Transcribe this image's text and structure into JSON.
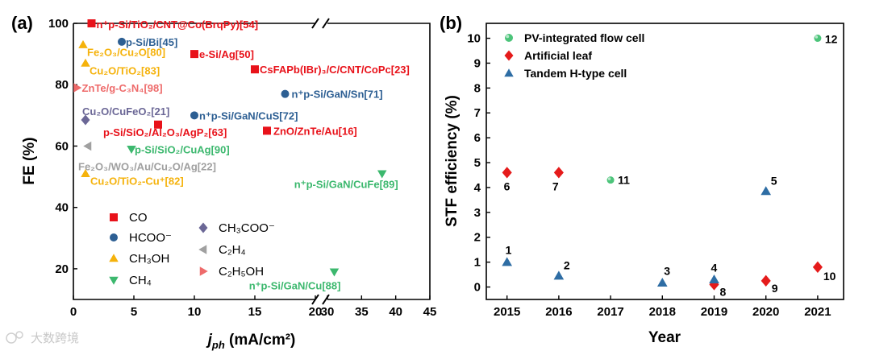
{
  "colors": {
    "CO": "#e8121a",
    "HCOO": "#2d5f93",
    "CH3OH": "#f5b20b",
    "CH4": "#3cb86e",
    "CH3COO": "#6b6796",
    "C2H4": "#a0a0a0",
    "C2H5OH": "#ee6b6b",
    "pv": "#4cc47a",
    "leaf": "#e51b1b",
    "tandem": "#2e6da4"
  },
  "watermark": "大数跨境",
  "chart_data": [
    {
      "panel": "(a)",
      "type": "scatter",
      "xlabel_main": "j",
      "xlabel_sub": "ph",
      "xlabel_rest": " (mA/cm²)",
      "ylabel": "FE (%)",
      "x_segments": [
        [
          0,
          20
        ],
        [
          30,
          45
        ]
      ],
      "x_ticks": [
        "0",
        "5",
        "10",
        "15",
        "20",
        "30",
        "35",
        "40",
        "45"
      ],
      "y_range": [
        10,
        100
      ],
      "y_ticks": [
        "20",
        "40",
        "60",
        "80",
        "100"
      ],
      "legend": [
        {
          "key": "CO",
          "label": "CO"
        },
        {
          "key": "HCOO",
          "label": "HCOO⁻"
        },
        {
          "key": "CH3OH",
          "label": "CH₃OH"
        },
        {
          "key": "CH4",
          "label": "CH₄"
        },
        {
          "key": "CH3COO",
          "label": "CH₃COO⁻"
        },
        {
          "key": "C2H4",
          "label": "C₂H₄"
        },
        {
          "key": "C2H5OH",
          "label": "C₂H₅OH"
        }
      ],
      "points": [
        {
          "type": "CO",
          "x": 1.5,
          "y": 100,
          "label": "n⁺p-Si/TiO₂/CNT@Co(BrqPy)[54]"
        },
        {
          "type": "HCOO",
          "x": 4,
          "y": 94,
          "label": "p-Si/Bi[45]"
        },
        {
          "type": "CH3OH",
          "x": 0.8,
          "y": 93,
          "label": "Fe₂O₃/Cu₂O[80]"
        },
        {
          "type": "CO",
          "x": 10,
          "y": 90,
          "label": "e-Si/Ag[50]"
        },
        {
          "type": "CH3OH",
          "x": 1,
          "y": 87,
          "label": "Cu₂O/TiO₂[83]"
        },
        {
          "type": "CO",
          "x": 15,
          "y": 85,
          "label": "CsFAPb(IBr)₃/C/CNT/CoPc[23]"
        },
        {
          "type": "C2H5OH",
          "x": 0.3,
          "y": 79,
          "label": "ZnTe/g-C₃N₄[98]"
        },
        {
          "type": "HCOO",
          "x": 17.5,
          "y": 77,
          "label": "n⁺p-Si/GaN/Sn[71]"
        },
        {
          "type": "HCOO",
          "x": 10,
          "y": 70,
          "label": "n⁺p-Si/GaN/CuS[72]"
        },
        {
          "type": "CH3COO",
          "x": 1,
          "y": 68.5,
          "label": "Cu₂O/CuFeO₂[21]"
        },
        {
          "type": "CO",
          "x": 7,
          "y": 67,
          "label": "p-Si/SiO₂/Al₂O₃/AgP₂[63]"
        },
        {
          "type": "CO",
          "x": 16,
          "y": 65,
          "label": "ZnO/ZnTe/Au[16]"
        },
        {
          "type": "C2H4",
          "x": 1.2,
          "y": 60,
          "label": "Fe₂O₃/WO₃/Au/Cu₂O/Ag[22]"
        },
        {
          "type": "CH4",
          "x": 4.8,
          "y": 59,
          "label": "p-Si/SiO₂/CuAg[90]"
        },
        {
          "type": "CH3OH",
          "x": 1,
          "y": 51,
          "label": "Cu₂O/TiO₂-Cu⁺[82]"
        },
        {
          "type": "CH4",
          "x": 38,
          "y": 51,
          "label": "n⁺p-Si/GaN/CuFe[89]"
        },
        {
          "type": "CH4",
          "x": 31,
          "y": 19,
          "label": "n⁺p-Si/GaN/Cu[88]"
        }
      ]
    },
    {
      "panel": "(b)",
      "type": "scatter",
      "xlabel": "Year",
      "ylabel": "STF efficiency (%)",
      "x_range": [
        2014.6,
        2021.5
      ],
      "x_ticks": [
        "2015",
        "2016",
        "2017",
        "2018",
        "2019",
        "2020",
        "2021"
      ],
      "y_range": [
        -0.5,
        10.6
      ],
      "y_ticks": [
        "0",
        "1",
        "2",
        "3",
        "4",
        "5",
        "6",
        "7",
        "8",
        "9",
        "10"
      ],
      "legend": [
        {
          "key": "pv",
          "label": "PV-integrated flow cell"
        },
        {
          "key": "leaf",
          "label": "Artificial leaf"
        },
        {
          "key": "tandem",
          "label": "Tandem H-type cell"
        }
      ],
      "series": [
        {
          "key": "pv",
          "name": "PV-integrated flow cell",
          "points": [
            {
              "x": 2017,
              "y": 4.3,
              "label": "11"
            },
            {
              "x": 2021,
              "y": 10.0,
              "label": "12"
            }
          ]
        },
        {
          "key": "leaf",
          "name": "Artificial leaf",
          "points": [
            {
              "x": 2015,
              "y": 4.6,
              "label": "6"
            },
            {
              "x": 2016,
              "y": 4.6,
              "label": "7"
            },
            {
              "x": 2019,
              "y": 0.1,
              "label": "8"
            },
            {
              "x": 2020,
              "y": 0.25,
              "label": "9"
            },
            {
              "x": 2021,
              "y": 0.8,
              "label": "10"
            }
          ]
        },
        {
          "key": "tandem",
          "name": "Tandem H-type cell",
          "points": [
            {
              "x": 2015,
              "y": 1.0,
              "label": "1"
            },
            {
              "x": 2016,
              "y": 0.45,
              "label": "2"
            },
            {
              "x": 2018,
              "y": 0.17,
              "label": "3"
            },
            {
              "x": 2019,
              "y": 0.3,
              "label": "4"
            },
            {
              "x": 2020,
              "y": 3.85,
              "label": "5"
            }
          ]
        }
      ]
    }
  ]
}
